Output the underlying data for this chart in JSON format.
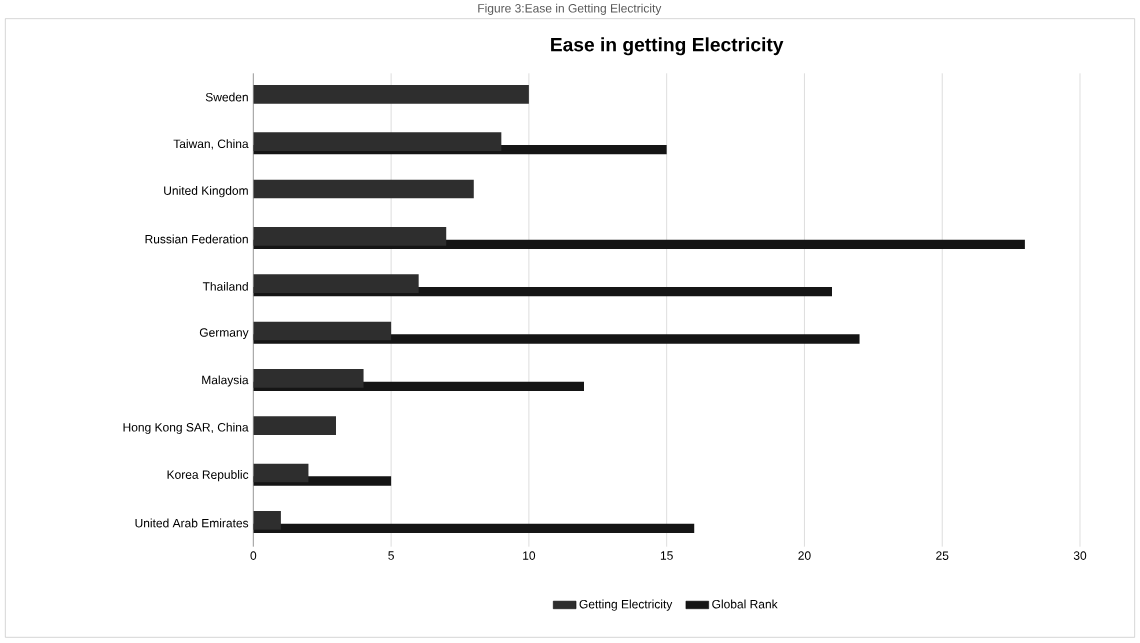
{
  "chart_data": {
    "type": "bar",
    "orientation": "horizontal",
    "title": "Ease in getting Electricity",
    "annotations": [
      "Figure 3:Ease in Getting Electricity"
    ],
    "categories": [
      "Sweden",
      "Taiwan, China",
      "United Kingdom",
      "Russian Federation",
      "Thailand",
      "Germany",
      "Malaysia",
      "Hong Kong SAR, China",
      "Korea Republic",
      "United Arab Emirates"
    ],
    "series": [
      {
        "name": "Getting Electricity",
        "color": "#2e2e2e",
        "values": [
          10,
          9,
          8,
          7,
          6,
          5,
          4,
          3,
          2,
          1
        ]
      },
      {
        "name": "Global Rank",
        "color": "#151515",
        "values": [
          null,
          15,
          null,
          28,
          21,
          22,
          12,
          null,
          5,
          16
        ]
      }
    ],
    "xlim": [
      0,
      30
    ],
    "xticks": [
      0,
      5,
      10,
      15,
      20,
      25,
      30
    ],
    "grid": "x",
    "legend": "bottom"
  }
}
